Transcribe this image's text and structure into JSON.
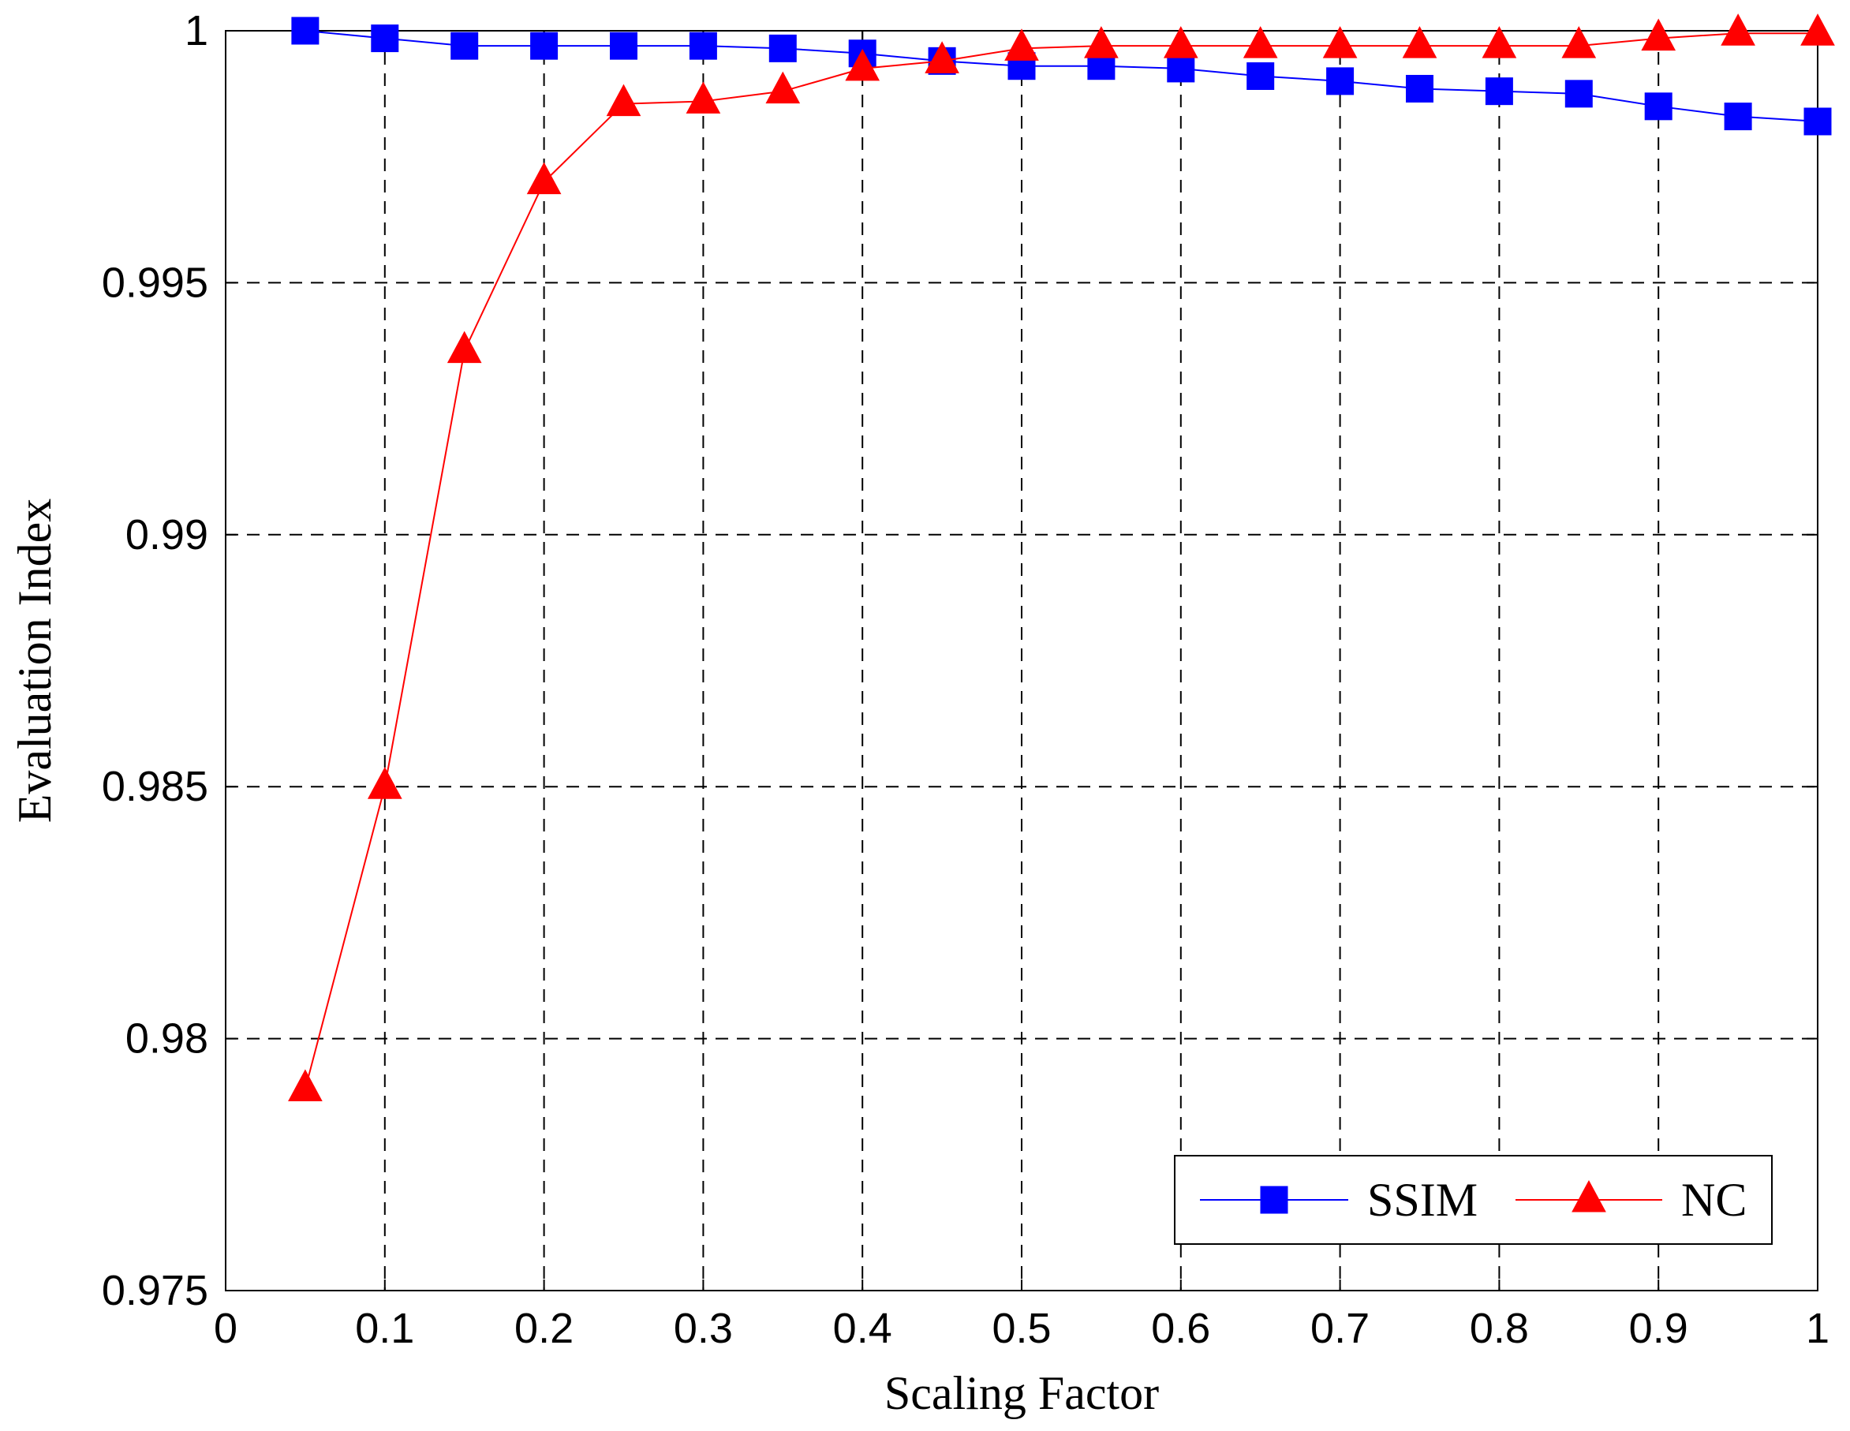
{
  "chart_data": {
    "type": "line",
    "xlabel": "Scaling Factor",
    "ylabel": "Evaluation Index",
    "xlim": [
      0,
      1
    ],
    "ylim": [
      0.975,
      1
    ],
    "xticks": [
      "0",
      "0.1",
      "0.2",
      "0.3",
      "0.4",
      "0.5",
      "0.6",
      "0.7",
      "0.8",
      "0.9",
      "1"
    ],
    "yticks": [
      "0.975",
      "0.98",
      "0.985",
      "0.99",
      "0.995",
      "1"
    ],
    "grid": true,
    "legend_position": "bottom-right",
    "x": [
      0.05,
      0.1,
      0.15,
      0.2,
      0.25,
      0.3,
      0.35,
      0.4,
      0.45,
      0.5,
      0.55,
      0.6,
      0.65,
      0.7,
      0.75,
      0.8,
      0.85,
      0.9,
      0.95,
      1.0
    ],
    "series": [
      {
        "name": "SSIM",
        "color": "#0000ff",
        "marker": "square",
        "values": [
          1.0,
          0.99985,
          0.9997,
          0.9997,
          0.9997,
          0.9997,
          0.99965,
          0.99955,
          0.9994,
          0.9993,
          0.9993,
          0.99925,
          0.9991,
          0.999,
          0.99885,
          0.9988,
          0.99875,
          0.9985,
          0.9983,
          0.9982
        ]
      },
      {
        "name": "NC",
        "color": "#ff0000",
        "marker": "triangle",
        "values": [
          0.979,
          0.985,
          0.99365,
          0.997,
          0.99855,
          0.9986,
          0.9988,
          0.99925,
          0.9994,
          0.99965,
          0.9997,
          0.9997,
          0.9997,
          0.9997,
          0.9997,
          0.9997,
          0.9997,
          0.99985,
          0.99995,
          0.99995
        ]
      }
    ]
  }
}
